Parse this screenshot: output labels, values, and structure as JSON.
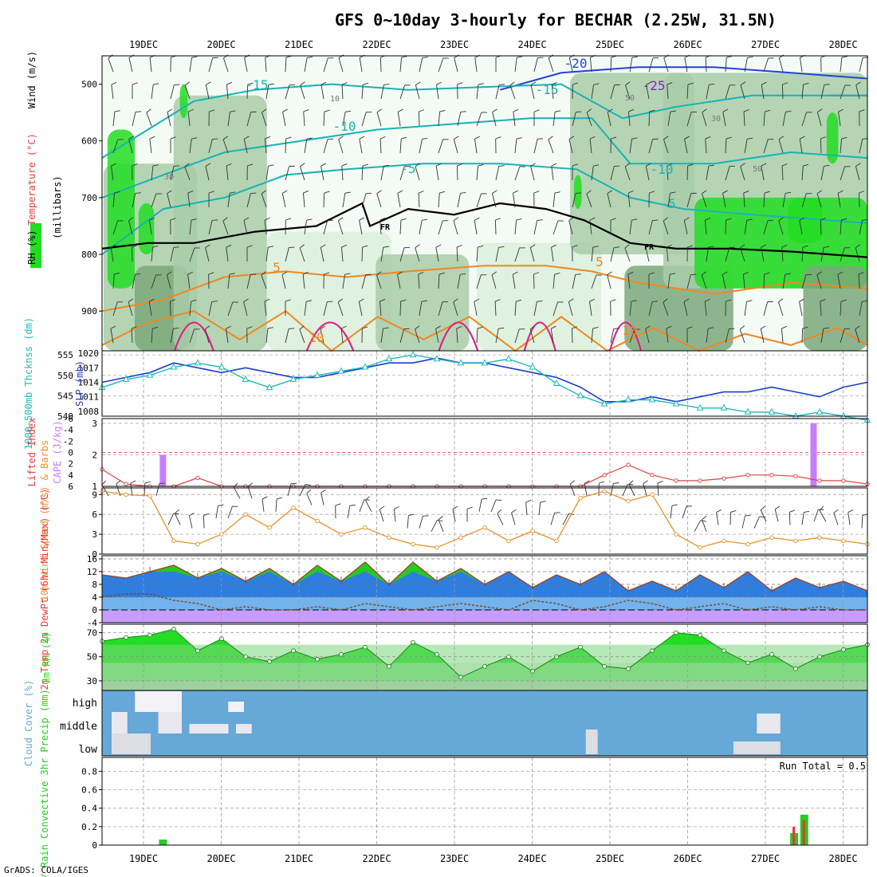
{
  "title": "GFS 0~10day 3-hourly for BECHAR (2.25W, 31.5N)",
  "credit": "GrADS: COLA/IGES",
  "dates": [
    "19DEC",
    "20DEC",
    "21DEC",
    "22DEC",
    "23DEC",
    "24DEC",
    "25DEC",
    "26DEC",
    "27DEC",
    "28DEC"
  ],
  "colors": {
    "rh_light": "#dbeedb",
    "rh_mid": "#a8cda8",
    "rh_dark": "#7aa87a",
    "rh_green": "#22dd22",
    "wind_blue": "#2244dd",
    "cyan": "#19b3b3",
    "slp_blue": "#1a3fcc",
    "thick_cyan": "#20b8b8",
    "cape": "#c77dff",
    "lifted": "#e04040",
    "wind10": "#e8922a",
    "temp_green": "#22cc22",
    "temp_blue": "#2e7de0",
    "dew_purple": "#c89cff",
    "rh_series": "#22dd22",
    "cloud_blue": "#66a8d8",
    "precip_green": "#22cc22",
    "precip_red": "#ee3333",
    "frz": "#000000",
    "temp_pos": "#ee8822",
    "temp_warm": "#dd2288",
    "temp_neg25": "#8822cc"
  },
  "chart_data": [
    {
      "type": "heatmap",
      "panel": "upper-air",
      "ylabel": "(millibars)",
      "left_labels": [
        "Wind (m/s)",
        "Temperature (°C)",
        "RH (%)"
      ],
      "y_ticks": [
        500,
        600,
        700,
        800,
        900
      ],
      "ylim": [
        970,
        450
      ],
      "contour_labels": [
        "-25",
        "-20",
        "-15",
        "-15",
        "-10",
        "-10",
        "-5",
        "-5",
        "5",
        "5",
        "10",
        "10",
        "FR",
        "FR",
        "30",
        "30",
        "50",
        "50",
        "10"
      ],
      "isotherms": [
        {
          "label": "-25",
          "x": [
            9.5,
            10.0
          ],
          "p": [
            520,
            520
          ]
        },
        {
          "label": "-20",
          "x": [
            5.2,
            6.0,
            7.0,
            8.0,
            9.0,
            10.0
          ],
          "p": [
            510,
            480,
            470,
            470,
            480,
            490
          ]
        },
        {
          "label": "-15",
          "x": [
            0,
            0.6,
            1.2,
            2.0,
            3.0,
            4.0,
            5.0,
            6.0,
            6.8,
            7.5,
            8.5,
            10.0
          ],
          "p": [
            630,
            580,
            530,
            510,
            500,
            510,
            505,
            500,
            560,
            540,
            520,
            520
          ]
        },
        {
          "label": "-10",
          "x": [
            0,
            0.8,
            1.6,
            2.6,
            3.6,
            4.6,
            5.6,
            6.4,
            6.9,
            8.0,
            9.0,
            10.0
          ],
          "p": [
            700,
            660,
            620,
            600,
            580,
            570,
            560,
            560,
            640,
            640,
            620,
            630
          ]
        },
        {
          "label": "-5",
          "x": [
            0,
            0.8,
            1.6,
            2.4,
            3.2,
            4.2,
            5.2,
            6.2,
            6.9,
            7.6,
            8.5,
            10.0
          ],
          "p": [
            800,
            720,
            700,
            660,
            650,
            640,
            640,
            650,
            700,
            720,
            730,
            745
          ]
        },
        {
          "label": "FR",
          "x": [
            0,
            0.6,
            1.2,
            2.0,
            2.8,
            3.4,
            3.5,
            4.0,
            4.6,
            5.2,
            5.8,
            6.3,
            6.9,
            7.5,
            8.2,
            9.0,
            10.0
          ],
          "p": [
            790,
            780,
            780,
            760,
            750,
            710,
            750,
            720,
            730,
            710,
            720,
            740,
            780,
            790,
            790,
            795,
            805
          ]
        },
        {
          "label": "5",
          "x": [
            0,
            0.8,
            1.6,
            2.4,
            3.2,
            4.0,
            5.0,
            5.8,
            6.4,
            7.0,
            8.0,
            9.0,
            10.0
          ],
          "p": [
            900,
            880,
            840,
            830,
            840,
            830,
            820,
            820,
            830,
            850,
            870,
            850,
            860
          ]
        },
        {
          "label": "10",
          "x": [
            0,
            0.6,
            1.2,
            1.8,
            2.4,
            3.0,
            3.6,
            4.2,
            4.8,
            5.4,
            6.0,
            6.6,
            7.2,
            7.8,
            8.4,
            9.0,
            9.6,
            10.0
          ],
          "p": [
            960,
            920,
            900,
            950,
            900,
            970,
            910,
            950,
            910,
            970,
            910,
            970,
            930,
            970,
            940,
            960,
            930,
            960
          ]
        }
      ]
    },
    {
      "type": "line",
      "panel": "slp-thickness",
      "ylabel_left": "1000-500mb Thcknss (dm)",
      "ylabel_right": "SLP (mb)",
      "y_left_ticks": [
        540,
        545,
        550,
        555
      ],
      "y_right_ticks": [
        1008,
        1011,
        1014,
        1017,
        1020
      ],
      "series": [
        {
          "name": "SLP (mb)",
          "axis": "right",
          "values": [
            1014,
            1015,
            1016,
            1018,
            1017,
            1016,
            1017,
            1016,
            1015,
            1015,
            1016,
            1017,
            1018,
            1018,
            1019,
            1018,
            1018,
            1017,
            1016,
            1015,
            1013,
            1010,
            1010,
            1011,
            1010,
            1011,
            1012,
            1012,
            1013,
            1012,
            1011,
            1013,
            1014
          ]
        },
        {
          "name": "1000-500mb Thcknss (dm)",
          "axis": "left",
          "values": [
            547,
            549,
            550,
            552,
            553,
            552,
            549,
            547,
            549,
            550,
            551,
            552,
            554,
            555,
            554,
            553,
            553,
            554,
            552,
            548,
            545,
            543,
            544,
            544,
            543,
            542,
            542,
            541,
            541,
            540,
            541,
            540,
            539
          ]
        }
      ]
    },
    {
      "type": "bar",
      "panel": "lifted-cape",
      "ylabel_left": "Lifted Index",
      "ylabel_right": "CAPE (J/kg)",
      "y_left_ticks": [
        -6,
        -4,
        -2,
        0,
        2,
        4,
        6
      ],
      "y_right_ticks": [
        1,
        2,
        3
      ],
      "cape_bars": [
        {
          "day": 0.25,
          "value": 2.0
        },
        {
          "day": 8.62,
          "value": 3.0
        }
      ],
      "lifted_index": [
        3.0,
        5.6,
        6.0,
        6.0,
        4.5,
        6.0,
        6.0,
        6.0,
        6.0,
        6.0,
        6.0,
        6.0,
        6.0,
        6.0,
        6.0,
        6.0,
        6.0,
        6.0,
        6.0,
        6.0,
        6.0,
        4.0,
        2.2,
        4.0,
        5.0,
        5.0,
        4.6,
        4.0,
        4.0,
        4.2,
        5.0,
        5.0,
        5.6
      ]
    },
    {
      "type": "line",
      "panel": "wind10",
      "ylabel": "10m Wind Speed (m/s) & Barbs",
      "y_ticks": [
        0,
        3,
        6,
        9
      ],
      "values": [
        9.5,
        9.0,
        8.8,
        2.0,
        1.5,
        3.0,
        6.0,
        4.0,
        7.0,
        5.0,
        3.0,
        4.0,
        2.5,
        1.5,
        1.0,
        2.5,
        4.0,
        2.0,
        3.5,
        2.0,
        8.5,
        9.5,
        8.0,
        9.0,
        3.0,
        1.0,
        2.0,
        1.5,
        2.5,
        2.0,
        2.5,
        2.0,
        1.5
      ]
    },
    {
      "type": "area",
      "panel": "temp-dewpoint",
      "ylabel": "2m Temp 2m DewPt (6hr Min/Max) (°C)",
      "y_ticks": [
        -4,
        0,
        4,
        8,
        12,
        16
      ],
      "temp": [
        11,
        10,
        12,
        14,
        10,
        13,
        9,
        13,
        8,
        14,
        9,
        15,
        8,
        15,
        9,
        13,
        8,
        12,
        7,
        11,
        8,
        12,
        6,
        9,
        6,
        11,
        7,
        12,
        6,
        10,
        7,
        9,
        6
      ],
      "dewpoint": [
        4,
        5,
        5,
        3,
        2,
        0,
        1,
        0,
        0,
        1,
        0,
        2,
        1,
        0,
        1,
        2,
        1,
        0,
        3,
        2,
        0,
        1,
        3,
        2,
        0,
        1,
        2,
        0,
        1,
        0,
        1,
        0,
        0
      ]
    },
    {
      "type": "area",
      "panel": "rh",
      "ylabel": "2m RH (%)",
      "y_ticks": [
        30,
        50,
        70
      ],
      "values": [
        63,
        66,
        68,
        73,
        55,
        65,
        50,
        46,
        55,
        48,
        52,
        58,
        42,
        62,
        52,
        33,
        42,
        50,
        38,
        50,
        58,
        42,
        40,
        55,
        70,
        68,
        55,
        45,
        52,
        40,
        50,
        56,
        60
      ]
    },
    {
      "type": "heatmap",
      "panel": "cloud-cover",
      "ylabel": "Cloud Cover (%)",
      "y_categories": [
        "high",
        "middle",
        "low"
      ]
    },
    {
      "type": "bar",
      "panel": "precip",
      "ylabel": "Total / Rain Convective 3hr Precip (mm)",
      "y_ticks": [
        0,
        0.2,
        0.4,
        0.6,
        0.8
      ],
      "annotation": "Run Total = 0.5",
      "bars": [
        {
          "day": 0.25,
          "total": 0.06,
          "conv": 0.0
        },
        {
          "day": 8.37,
          "total": 0.13,
          "conv": 0.2
        },
        {
          "day": 8.5,
          "total": 0.33,
          "conv": 0.27
        }
      ]
    }
  ]
}
